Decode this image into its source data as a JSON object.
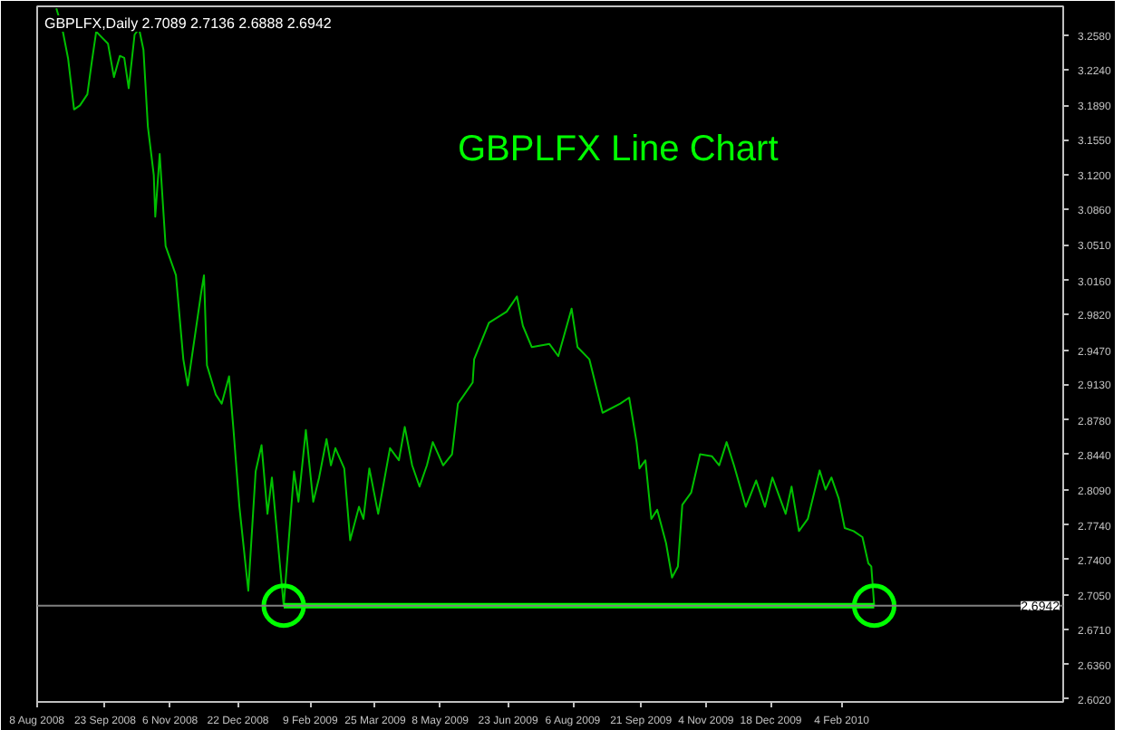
{
  "chart_data": {
    "type": "line",
    "title": "GBPLFX Line Chart",
    "annotations": [
      "GBPLFX,Daily  2.7089 2.7136 2.6888 2.6942"
    ],
    "series": [
      {
        "color": "#00c000",
        "marker": "none",
        "x": [
          "2008-08-21",
          "2008-08-25",
          "2008-08-29",
          "2008-09-02",
          "2008-09-06",
          "2008-09-11",
          "2008-09-14",
          "2008-09-17",
          "2008-09-21",
          "2008-09-25",
          "2008-09-29",
          "2008-10-03",
          "2008-10-06",
          "2008-10-09",
          "2008-10-13",
          "2008-10-16",
          "2008-10-19",
          "2008-10-22",
          "2008-10-26",
          "2008-10-27",
          "2008-10-30",
          "2008-11-03",
          "2008-11-10",
          "2008-11-15",
          "2008-11-18",
          "2008-11-27",
          "2008-11-29",
          "2008-12-01",
          "2008-12-07",
          "2008-12-11",
          "2008-12-16",
          "2008-12-19",
          "2008-12-23",
          "2008-12-29",
          "2009-01-03",
          "2009-01-07",
          "2009-01-11",
          "2009-01-14",
          "2009-01-22",
          "2009-01-29",
          "2009-02-01",
          "2009-02-06",
          "2009-02-11",
          "2009-02-15",
          "2009-02-20",
          "2009-02-23",
          "2009-02-26",
          "2009-03-04",
          "2009-03-08",
          "2009-03-14",
          "2009-03-17",
          "2009-03-21",
          "2009-03-27",
          "2009-04-04",
          "2009-04-10",
          "2009-04-14",
          "2009-04-19",
          "2009-04-24",
          "2009-04-29",
          "2009-05-03",
          "2009-05-10",
          "2009-05-16",
          "2009-05-20",
          "2009-05-30",
          "2009-05-31",
          "2009-06-10",
          "2009-06-22",
          "2009-06-29",
          "2009-07-03",
          "2009-07-09",
          "2009-07-21",
          "2009-07-27",
          "2009-08-05",
          "2009-08-09",
          "2009-08-17",
          "2009-08-26",
          "2009-09-07",
          "2009-09-13",
          "2009-09-18",
          "2009-09-20",
          "2009-09-24",
          "2009-09-28",
          "2009-10-02",
          "2009-10-08",
          "2009-10-12",
          "2009-10-16",
          "2009-10-19",
          "2009-10-25",
          "2009-10-31",
          "2009-11-08",
          "2009-11-13",
          "2009-11-18",
          "2009-11-23",
          "2009-12-01",
          "2009-12-08",
          "2009-12-14",
          "2009-12-19",
          "2009-12-28",
          "2010-01-01",
          "2010-01-06",
          "2010-01-12",
          "2010-01-20",
          "2010-01-24",
          "2010-01-28",
          "2010-02-02",
          "2010-02-06",
          "2010-02-12",
          "2010-02-18",
          "2010-02-22",
          "2010-02-24",
          "2010-02-26"
        ],
        "values": [
          3.285,
          3.265,
          3.235,
          3.185,
          3.189,
          3.2,
          3.232,
          3.262,
          3.256,
          3.25,
          3.217,
          3.238,
          3.236,
          3.206,
          3.259,
          3.265,
          3.244,
          3.168,
          3.12,
          3.079,
          3.141,
          3.05,
          3.021,
          2.938,
          2.912,
          3.003,
          3.021,
          2.932,
          2.903,
          2.894,
          2.921,
          2.868,
          2.792,
          2.709,
          2.827,
          2.853,
          2.785,
          2.821,
          2.694,
          2.827,
          2.797,
          2.868,
          2.797,
          2.821,
          2.859,
          2.833,
          2.85,
          2.83,
          2.759,
          2.792,
          2.78,
          2.83,
          2.785,
          2.85,
          2.838,
          2.871,
          2.833,
          2.812,
          2.833,
          2.856,
          2.833,
          2.844,
          2.894,
          2.915,
          2.938,
          2.974,
          2.985,
          3.0,
          2.971,
          2.95,
          2.953,
          2.941,
          2.988,
          2.95,
          2.938,
          2.885,
          2.894,
          2.9,
          2.856,
          2.83,
          2.838,
          2.78,
          2.789,
          2.756,
          2.722,
          2.733,
          2.794,
          2.806,
          2.844,
          2.842,
          2.833,
          2.856,
          2.833,
          2.792,
          2.818,
          2.792,
          2.821,
          2.785,
          2.812,
          2.768,
          2.78,
          2.828,
          2.809,
          2.821,
          2.8,
          2.771,
          2.768,
          2.762,
          2.736,
          2.733,
          2.6942
        ]
      },
      {
        "color": "#00ff00",
        "marker": "circle",
        "x": [
          "2009-01-22",
          "2010-02-26"
        ],
        "values": [
          2.6942,
          2.6942
        ]
      }
    ],
    "ref_lines": [
      {
        "axis": "y",
        "value": 2.6942,
        "label": "2.6942",
        "color": "#808080"
      }
    ],
    "xlim": [
      "2008-08-08",
      "2010-07-04"
    ],
    "xticks": [
      {
        "value": "2008-08-08",
        "label": "8 Aug 2008"
      },
      {
        "value": "2008-09-23",
        "label": "23 Sep 2008"
      },
      {
        "value": "2008-11-06",
        "label": "6 Nov 2008"
      },
      {
        "value": "2008-12-22",
        "label": "22 Dec 2008"
      },
      {
        "value": "2009-02-09",
        "label": "9 Feb 2009"
      },
      {
        "value": "2009-03-25",
        "label": "25 Mar 2009"
      },
      {
        "value": "2009-05-08",
        "label": "8 May 2009"
      },
      {
        "value": "2009-06-23",
        "label": "23 Jun 2009"
      },
      {
        "value": "2009-08-06",
        "label": "6 Aug 2009"
      },
      {
        "value": "2009-09-21",
        "label": "21 Sep 2009"
      },
      {
        "value": "2009-11-04",
        "label": "4 Nov 2009"
      },
      {
        "value": "2009-12-18",
        "label": "18 Dec 2009"
      },
      {
        "value": "2010-02-04",
        "label": "4 Feb 2010"
      }
    ],
    "ylim": [
      2.599,
      3.287
    ],
    "yticks": [
      {
        "value": 3.258,
        "label": "3.2580"
      },
      {
        "value": 3.224,
        "label": "3.2240"
      },
      {
        "value": 3.189,
        "label": "3.1890"
      },
      {
        "value": 3.155,
        "label": "3.1550"
      },
      {
        "value": 3.12,
        "label": "3.1200"
      },
      {
        "value": 3.086,
        "label": "3.0860"
      },
      {
        "value": 3.051,
        "label": "3.0510"
      },
      {
        "value": 3.016,
        "label": "3.0160"
      },
      {
        "value": 2.982,
        "label": "2.9820"
      },
      {
        "value": 2.947,
        "label": "2.9470"
      },
      {
        "value": 2.913,
        "label": "2.9130"
      },
      {
        "value": 2.878,
        "label": "2.8780"
      },
      {
        "value": 2.844,
        "label": "2.8440"
      },
      {
        "value": 2.809,
        "label": "2.8090"
      },
      {
        "value": 2.774,
        "label": "2.7740"
      },
      {
        "value": 2.74,
        "label": "2.7400"
      },
      {
        "value": 2.705,
        "label": "2.7050"
      },
      {
        "value": 2.671,
        "label": "2.6710"
      },
      {
        "value": 2.636,
        "label": "2.6360"
      },
      {
        "value": 2.602,
        "label": "2.6020"
      }
    ],
    "grid": false
  }
}
